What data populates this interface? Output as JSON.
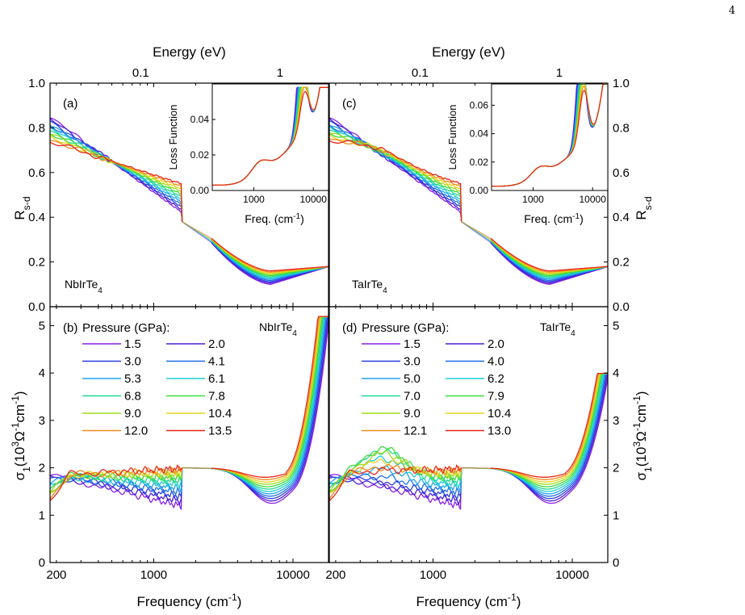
{
  "page_number": "4",
  "chart_data": [
    {
      "id": "a",
      "type": "line",
      "panel_label": "(a)",
      "sample": "NbIrTe",
      "sample_sub": "4",
      "ylabel": "R",
      "ylabel_sub": "s-d",
      "ylim": [
        0,
        1.0
      ],
      "yticks": [
        0.0,
        0.2,
        0.4,
        0.6,
        0.8,
        1.0
      ],
      "xscale": "log",
      "xlim": [
        180,
        18000
      ],
      "top_axis": {
        "label": "Energy (eV)",
        "ticks": [
          "0.1",
          "1"
        ]
      },
      "series_count": 12,
      "inset": {
        "ylabel": "Loss Function",
        "xlabel": "Freq. (cm",
        "xlabel_sup": "-1",
        "ylim": [
          0,
          0.06
        ],
        "yticks": [
          0.0,
          0.02,
          0.04
        ],
        "xscale": "log",
        "xticks": [
          "1000",
          "10000"
        ]
      }
    },
    {
      "id": "c",
      "type": "line",
      "panel_label": "(c)",
      "sample": "TaIrTe",
      "sample_sub": "4",
      "ylabel": "R",
      "ylabel_sub": "s-d",
      "ylim": [
        0,
        1.0
      ],
      "yticks": [
        0.0,
        0.2,
        0.4,
        0.6,
        0.8,
        1.0
      ],
      "xscale": "log",
      "xlim": [
        180,
        18000
      ],
      "top_axis": {
        "label": "Energy (eV)",
        "ticks": [
          "0.1",
          "1"
        ]
      },
      "series_count": 12,
      "inset": {
        "ylabel": "Loss Function",
        "xlabel": "Freq. (cm",
        "xlabel_sup": "-1",
        "ylim": [
          0,
          0.075
        ],
        "yticks": [
          0.0,
          0.02,
          0.04,
          0.06
        ],
        "xscale": "log",
        "xticks": [
          "1000",
          "10000"
        ]
      }
    },
    {
      "id": "b",
      "type": "line",
      "panel_label": "(b)",
      "legend_title": "Pressure (GPa):",
      "sample": "NbIrTe",
      "sample_sub": "4",
      "ylabel": "σ",
      "ylim": [
        0,
        5.4
      ],
      "yticks": [
        0,
        1,
        2,
        3,
        4,
        5
      ],
      "xscale": "log",
      "xlim": [
        180,
        18000
      ],
      "xticks": [
        "200",
        "1000",
        "10000"
      ],
      "xlabel": "Frequency (cm",
      "xlabel_sup": "-1",
      "pressures": [
        "1.5",
        "2.0",
        "3.0",
        "4.1",
        "5.3",
        "6.1",
        "6.8",
        "7.8",
        "9.0",
        "10.4",
        "12.0",
        "13.5"
      ]
    },
    {
      "id": "d",
      "type": "line",
      "panel_label": "(d)",
      "legend_title": "Pressure (GPa):",
      "sample": "TaIrTe",
      "sample_sub": "4",
      "ylabel": "σ",
      "ylim": [
        0,
        5.4
      ],
      "yticks": [
        0,
        1,
        2,
        3,
        4,
        5
      ],
      "xscale": "log",
      "xlim": [
        180,
        18000
      ],
      "xticks": [
        "200",
        "1000",
        "10000"
      ],
      "xlabel": "Frequency (cm",
      "xlabel_sup": "-1",
      "pressures": [
        "1.5",
        "2.0",
        "3.0",
        "4.0",
        "5.0",
        "6.2",
        "7.0",
        "7.9",
        "9.0",
        "10.4",
        "12.1",
        "13.0"
      ]
    }
  ],
  "series_colors": [
    "#8a1fe6",
    "#4b1fd8",
    "#2a3ee0",
    "#1f6fe6",
    "#1fa6ee",
    "#1fcfd2",
    "#1fd98c",
    "#3ad93a",
    "#9add1a",
    "#e8d21a",
    "#f08a1a",
    "#e8261a"
  ]
}
